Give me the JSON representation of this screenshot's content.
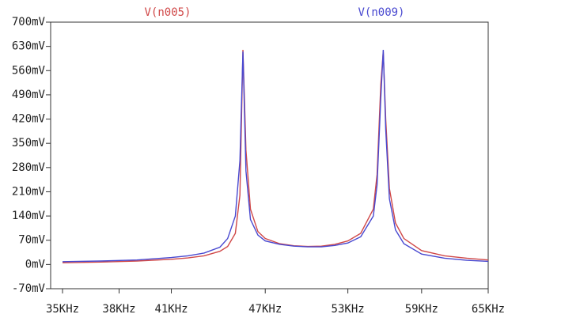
{
  "chart_data": {
    "type": "line",
    "x_scale": "log",
    "x": [
      35,
      37,
      39,
      41,
      42,
      43,
      44,
      44.5,
      45,
      45.3,
      45.5,
      45.7,
      46,
      46.5,
      47,
      48,
      49,
      50,
      51,
      52,
      53,
      54,
      55,
      55.3,
      55.6,
      55.8,
      56,
      56.3,
      56.8,
      57.5,
      59,
      61,
      63,
      65
    ],
    "series": [
      {
        "name": "V(n005)",
        "color": "#d04848",
        "values": [
          5,
          7,
          10,
          15,
          19,
          25,
          38,
          52,
          90,
          200,
          620,
          330,
          160,
          95,
          75,
          60,
          54,
          52,
          53,
          58,
          68,
          90,
          160,
          260,
          520,
          615,
          420,
          220,
          120,
          75,
          40,
          25,
          18,
          13
        ]
      },
      {
        "name": "V(n009)",
        "color": "#4848d0",
        "values": [
          8,
          10,
          13,
          20,
          25,
          33,
          50,
          75,
          140,
          300,
          615,
          270,
          130,
          85,
          68,
          58,
          53,
          51,
          51,
          55,
          62,
          80,
          140,
          230,
          480,
          620,
          390,
          190,
          100,
          60,
          30,
          18,
          12,
          9
        ]
      }
    ],
    "xlim": [
      34.4,
      65
    ],
    "xticks": [
      {
        "value": 35,
        "label": "35KHz"
      },
      {
        "value": 38,
        "label": "38KHz"
      },
      {
        "value": 41,
        "label": "41KHz"
      },
      {
        "value": 47,
        "label": "47KHz"
      },
      {
        "value": 53,
        "label": "53KHz"
      },
      {
        "value": 59,
        "label": "59KHz"
      },
      {
        "value": 65,
        "label": "65KHz"
      }
    ],
    "ylim": [
      -70,
      700
    ],
    "yticks": [
      {
        "value": -70,
        "label": "-70mV"
      },
      {
        "value": 0,
        "label": "0mV"
      },
      {
        "value": 70,
        "label": "70mV"
      },
      {
        "value": 140,
        "label": "140mV"
      },
      {
        "value": 210,
        "label": "210mV"
      },
      {
        "value": 280,
        "label": "280mV"
      },
      {
        "value": 350,
        "label": "350mV"
      },
      {
        "value": 420,
        "label": "420mV"
      },
      {
        "value": 490,
        "label": "490mV"
      },
      {
        "value": 560,
        "label": "560mV"
      },
      {
        "value": 630,
        "label": "630mV"
      },
      {
        "value": 700,
        "label": "700mV"
      }
    ]
  }
}
